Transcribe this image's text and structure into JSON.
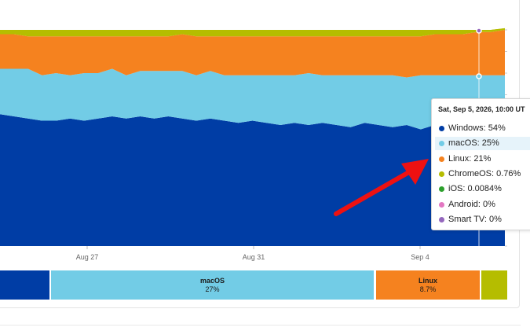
{
  "chart": {
    "x_ticks": [
      {
        "label": "Aug 27"
      },
      {
        "label": "Aug 31"
      },
      {
        "label": "Sep 4"
      }
    ],
    "colors": {
      "Windows": "#003da5",
      "macOS": "#72cce6",
      "Linux": "#f5821f",
      "ChromeOS": "#b5bd00",
      "iOS": "#2ca02c",
      "Android": "#e377c2",
      "Smart TV": "#9467bd"
    }
  },
  "chart_data": {
    "type": "area",
    "stacked": true,
    "normalized": true,
    "series": [
      {
        "name": "Windows",
        "values": [
          0.61,
          0.6,
          0.59,
          0.58,
          0.58,
          0.59,
          0.58,
          0.59,
          0.6,
          0.59,
          0.6,
          0.59,
          0.6,
          0.59,
          0.58,
          0.59,
          0.58,
          0.57,
          0.58,
          0.57,
          0.56,
          0.57,
          0.56,
          0.57,
          0.56,
          0.55,
          0.57,
          0.56,
          0.55,
          0.56,
          0.54,
          0.56,
          0.55,
          0.54,
          0.55,
          0.54,
          0.54
        ]
      },
      {
        "name": "macOS",
        "values": [
          0.21,
          0.22,
          0.23,
          0.21,
          0.22,
          0.2,
          0.22,
          0.21,
          0.22,
          0.2,
          0.21,
          0.22,
          0.21,
          0.22,
          0.21,
          0.22,
          0.21,
          0.22,
          0.21,
          0.22,
          0.23,
          0.22,
          0.24,
          0.22,
          0.23,
          0.24,
          0.22,
          0.23,
          0.24,
          0.22,
          0.25,
          0.23,
          0.24,
          0.25,
          0.24,
          0.25,
          0.25
        ]
      },
      {
        "name": "Linux",
        "values": [
          0.16,
          0.16,
          0.15,
          0.18,
          0.17,
          0.18,
          0.17,
          0.17,
          0.15,
          0.18,
          0.16,
          0.16,
          0.16,
          0.17,
          0.18,
          0.16,
          0.18,
          0.18,
          0.18,
          0.18,
          0.18,
          0.18,
          0.17,
          0.18,
          0.18,
          0.18,
          0.18,
          0.18,
          0.18,
          0.19,
          0.18,
          0.19,
          0.19,
          0.19,
          0.2,
          0.2,
          0.21
        ]
      },
      {
        "name": "ChromeOS",
        "values": [
          0.02,
          0.02,
          0.03,
          0.03,
          0.03,
          0.03,
          0.03,
          0.03,
          0.03,
          0.03,
          0.03,
          0.03,
          0.03,
          0.02,
          0.03,
          0.03,
          0.03,
          0.03,
          0.03,
          0.03,
          0.03,
          0.03,
          0.03,
          0.03,
          0.03,
          0.03,
          0.03,
          0.03,
          0.03,
          0.03,
          0.03,
          0.02,
          0.02,
          0.02,
          0.01,
          0.01,
          0.0076
        ]
      }
    ]
  },
  "share_bar": [
    {
      "name": "",
      "pct": "",
      "color": "#003da5"
    },
    {
      "name": "macOS",
      "pct": "27%",
      "color": "#72cce6"
    },
    {
      "name": "Linux",
      "pct": "8.7%",
      "color": "#f5821f"
    },
    {
      "name": "",
      "pct": "",
      "color": "#b5bd00"
    }
  ],
  "tooltip": {
    "title": "Sat, Sep 5, 2026, 10:00 UT",
    "rows": [
      {
        "label": "Windows: 54%",
        "color": "#003da5",
        "highlight": false
      },
      {
        "label": "macOS: 25%",
        "color": "#72cce6",
        "highlight": true
      },
      {
        "label": "Linux: 21%",
        "color": "#f5821f",
        "highlight": false
      },
      {
        "label": "ChromeOS: 0.76%",
        "color": "#b5bd00",
        "highlight": false
      },
      {
        "label": "iOS: 0.0084%",
        "color": "#2ca02c",
        "highlight": false
      },
      {
        "label": "Android: 0%",
        "color": "#e377c2",
        "highlight": false
      },
      {
        "label": "Smart TV: 0%",
        "color": "#9467bd",
        "highlight": false
      }
    ]
  },
  "annotation": {
    "arrow_color": "#ee1111"
  }
}
